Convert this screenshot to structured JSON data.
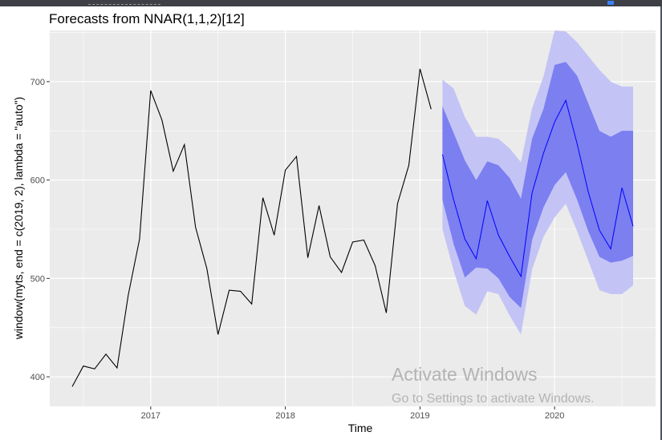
{
  "watermark": {
    "title": "Activate Windows",
    "subtitle": "Go to Settings to activate Windows."
  },
  "colors": {
    "panel_bg": "#ebebeb",
    "grid_major": "#ffffff",
    "history_line": "#000000",
    "forecast_line": "#0000ff",
    "pi_80": "#7b7ff0",
    "pi_95": "#c3c4f5"
  },
  "chart_data": {
    "type": "line",
    "title": "Forecasts from NNAR(1,1,2)[12]",
    "xlabel": "Time",
    "ylabel": "window(myts, end = c(2019, 2), lambda = \"auto\")",
    "xlim": [
      2016.25,
      2020.75
    ],
    "ylim": [
      370,
      752
    ],
    "x_ticks": [
      2017,
      2018,
      2019,
      2020
    ],
    "x_tick_labels": [
      "2017",
      "2018",
      "2019",
      "2020"
    ],
    "y_ticks": [
      400,
      500,
      600,
      700
    ],
    "y_tick_labels": [
      "400",
      "500",
      "600",
      "700"
    ],
    "grid": true,
    "history": {
      "x": [
        2016.417,
        2016.5,
        2016.583,
        2016.667,
        2016.75,
        2016.833,
        2016.917,
        2017.0,
        2017.083,
        2017.167,
        2017.25,
        2017.333,
        2017.417,
        2017.5,
        2017.583,
        2017.667,
        2017.75,
        2017.833,
        2017.917,
        2018.0,
        2018.083,
        2018.167,
        2018.25,
        2018.333,
        2018.417,
        2018.5,
        2018.583,
        2018.667,
        2018.75,
        2018.833,
        2018.917,
        2019.0,
        2019.083
      ],
      "y": [
        390,
        411,
        408,
        423,
        409,
        483,
        540,
        691,
        661,
        609,
        636,
        552,
        510,
        443,
        488,
        487,
        474,
        582,
        544,
        610,
        624,
        521,
        574,
        522,
        506,
        537,
        539,
        513,
        465,
        576,
        615,
        713,
        672
      ]
    },
    "forecast": {
      "x": [
        2019.167,
        2019.25,
        2019.333,
        2019.417,
        2019.5,
        2019.583,
        2019.667,
        2019.75,
        2019.833,
        2019.917,
        2020.0,
        2020.083,
        2020.167,
        2020.25,
        2020.333,
        2020.417,
        2020.5,
        2020.583
      ],
      "mean": [
        626,
        580,
        540,
        520,
        579,
        544,
        522,
        502,
        587,
        627,
        659,
        681,
        637,
        588,
        549,
        530,
        592,
        553
      ],
      "lo80": [
        580,
        535,
        501,
        511,
        510,
        500,
        481,
        470,
        539,
        572,
        595,
        608,
        580,
        548,
        522,
        516,
        518,
        523
      ],
      "hi80": [
        675,
        648,
        620,
        600,
        619,
        615,
        602,
        581,
        642,
        672,
        717,
        720,
        706,
        678,
        650,
        644,
        650,
        650
      ],
      "lo95": [
        550,
        508,
        472,
        463,
        487,
        484,
        462,
        443,
        509,
        542,
        562,
        576,
        548,
        518,
        488,
        484,
        484,
        493
      ],
      "hi95": [
        702,
        693,
        664,
        644,
        644,
        642,
        632,
        618,
        673,
        705,
        752,
        751,
        740,
        726,
        712,
        700,
        695,
        695
      ]
    }
  }
}
